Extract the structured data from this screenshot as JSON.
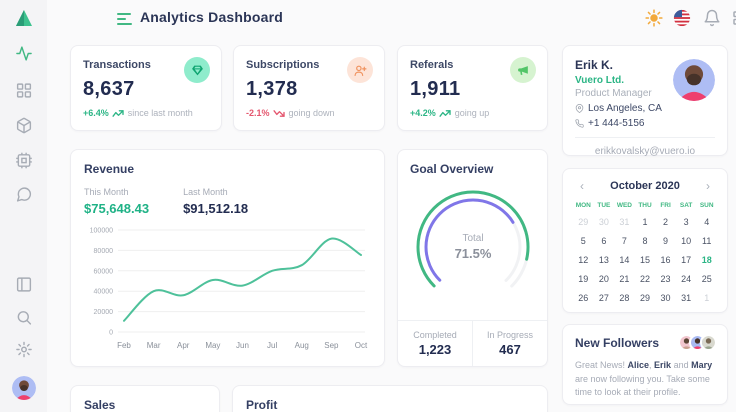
{
  "colors": {
    "green": "#41b883",
    "green_text": "#1fb286",
    "red": "#e4566e",
    "purple": "#8076e8",
    "navy": "#222c50",
    "gray": "#a6abb6",
    "orange": "#f09a6a",
    "mint_bg": "#8feccc",
    "peach_bg": "#fde4d8",
    "lightgreen_bg": "#d6f3d0"
  },
  "header": {
    "title": "Analytics Dashboard",
    "icons": [
      "menu-icon",
      "sun-icon",
      "us-flag-icon",
      "bell-icon",
      "apps-grid-icon"
    ]
  },
  "sidebar": {
    "icons": [
      "logo-triangle",
      "activity-icon",
      "dashboard-grid-icon",
      "box-icon",
      "cpu-icon",
      "chat-bubble-icon",
      "layout-icon",
      "search-icon",
      "gear-icon",
      "user-avatar"
    ]
  },
  "stats": [
    {
      "title": "Transactions",
      "value": "8,637",
      "delta": "+6.4%",
      "delta_dir": "up",
      "note": "since last month",
      "icon": "gem-icon"
    },
    {
      "title": "Subscriptions",
      "value": "1,378",
      "delta": "-2.1%",
      "delta_dir": "down",
      "note": "going down",
      "icon": "user-plus-icon"
    },
    {
      "title": "Referals",
      "value": "1,911",
      "delta": "+4.2%",
      "delta_dir": "up",
      "note": "going up",
      "icon": "megaphone-icon"
    }
  ],
  "revenue": {
    "title": "Revenue",
    "this_month_label": "This Month",
    "this_month_value": "$75,648.43",
    "last_month_label": "Last Month",
    "last_month_value": "$91,512.18"
  },
  "goal": {
    "title": "Goal Overview",
    "center_label": "Total",
    "center_value": "71.5%",
    "completed_label": "Completed",
    "completed_value": "1,223",
    "inprogress_label": "In Progress",
    "inprogress_value": "467"
  },
  "bottom": {
    "sales_title": "Sales",
    "profit_title": "Profit"
  },
  "profile": {
    "name": "Erik K.",
    "company": "Vuero Ltd.",
    "role": "Product Manager",
    "location": "Los Angeles, CA",
    "phone": "+1 444-5156",
    "email": "erikkovalsky@vuero.io"
  },
  "calendar": {
    "prev": "‹",
    "next": "›",
    "month": "October 2020",
    "day_names": [
      "MON",
      "TUE",
      "WED",
      "THU",
      "FRI",
      "SAT",
      "SUN"
    ],
    "cells": [
      {
        "d": "29",
        "muted": true
      },
      {
        "d": "30",
        "muted": true
      },
      {
        "d": "31",
        "muted": true
      },
      {
        "d": "1"
      },
      {
        "d": "2"
      },
      {
        "d": "3"
      },
      {
        "d": "4"
      },
      {
        "d": "5"
      },
      {
        "d": "6"
      },
      {
        "d": "7"
      },
      {
        "d": "8"
      },
      {
        "d": "9"
      },
      {
        "d": "10"
      },
      {
        "d": "11"
      },
      {
        "d": "12"
      },
      {
        "d": "13"
      },
      {
        "d": "14"
      },
      {
        "d": "15"
      },
      {
        "d": "16"
      },
      {
        "d": "17"
      },
      {
        "d": "18",
        "selected": true
      },
      {
        "d": "19"
      },
      {
        "d": "20"
      },
      {
        "d": "21"
      },
      {
        "d": "22"
      },
      {
        "d": "23"
      },
      {
        "d": "24"
      },
      {
        "d": "25"
      },
      {
        "d": "26"
      },
      {
        "d": "27"
      },
      {
        "d": "28"
      },
      {
        "d": "29"
      },
      {
        "d": "30"
      },
      {
        "d": "31"
      },
      {
        "d": "1",
        "muted": true
      }
    ]
  },
  "followers": {
    "title": "New Followers",
    "segments": [
      {
        "t": "Great News! ",
        "b": false
      },
      {
        "t": "Alice",
        "b": true
      },
      {
        "t": ", ",
        "b": false
      },
      {
        "t": "Erik",
        "b": true
      },
      {
        "t": " and ",
        "b": false
      },
      {
        "t": "Mary",
        "b": true
      },
      {
        "t": " are now following you. Take some time to look at their profile.",
        "b": false
      }
    ]
  },
  "chart_data": [
    {
      "type": "line",
      "title": "Revenue",
      "x": [
        "Feb",
        "Mar",
        "Apr",
        "May",
        "Jun",
        "Jul",
        "Aug",
        "Sep",
        "Oct"
      ],
      "series": [
        {
          "name": "Revenue",
          "values": [
            11000,
            40000,
            36000,
            51000,
            45500,
            60000,
            65500,
            91500,
            75500
          ]
        }
      ],
      "ylim": [
        0,
        100000
      ],
      "yticks": [
        0,
        20000,
        40000,
        60000,
        80000,
        100000
      ],
      "grid": true,
      "legend": "none",
      "line_color": "#4ec19a"
    },
    {
      "type": "donut",
      "title": "Goal Overview",
      "center_label": "Total",
      "center_value": 71.5,
      "track_degrees": 270,
      "rings": [
        {
          "name": "completed-outer",
          "pct": 88,
          "color": "#41b883"
        },
        {
          "name": "progress-inner",
          "pct": 71.5,
          "color": "#8076e8"
        }
      ],
      "completed": 1223,
      "in_progress": 467
    }
  ]
}
